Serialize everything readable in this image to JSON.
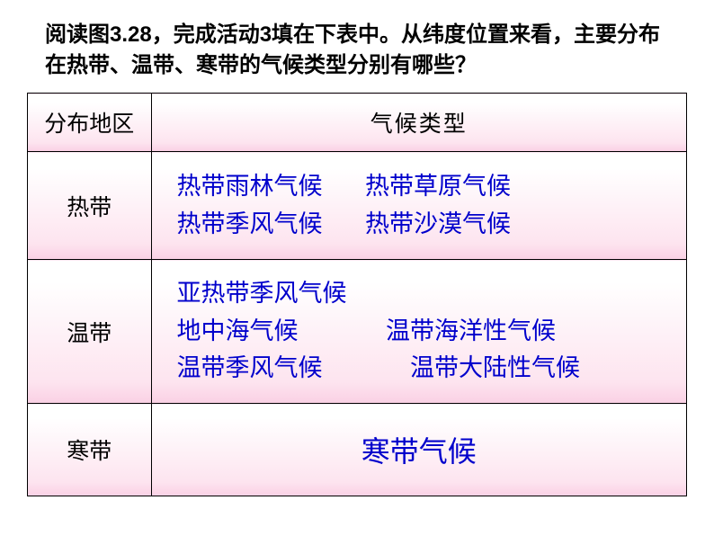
{
  "prompt": "阅读图3.28，完成活动3填在下表中。从纬度位置来看，主要分布在热带、温带、寒带的气候类型分别有哪些？",
  "header": {
    "region": "分布地区",
    "climate": "气候类型"
  },
  "rows": {
    "tropical": {
      "label": "热带",
      "line1_a": "热带雨林气候",
      "line1_b": "热带草原气候",
      "line2_a": "热带季风气候",
      "line2_b": "热带沙漠气候"
    },
    "temperate": {
      "label": "温带",
      "line1_a": "亚热带季风气候",
      "line2_a": "地中海气候",
      "line2_b": "温带海洋性气候",
      "line3_a": "温带季风气候",
      "line3_b": "温带大陆性气候"
    },
    "cold": {
      "label": "寒带",
      "value": "寒带气候"
    }
  },
  "colors": {
    "text_black": "#000000",
    "text_blue": "#0000cc",
    "gradient_top": "#ffffff",
    "gradient_mid": "#fde4ef",
    "gradient_bottom": "#fad0e4",
    "border": "#000000"
  },
  "fontsizes": {
    "prompt": 24,
    "header": 25,
    "row_label": 25,
    "climate": 27,
    "cold_value": 32
  }
}
